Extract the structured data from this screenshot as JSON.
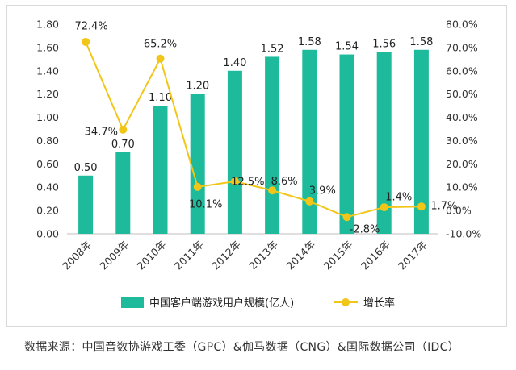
{
  "chart_data": {
    "type": "bar+line",
    "categories": [
      "2008年",
      "2009年",
      "2010年",
      "2011年",
      "2012年",
      "2013年",
      "2014年",
      "2015年",
      "2016年",
      "2017年"
    ],
    "series": [
      {
        "name": "中国客户端游戏用户规模(亿人)",
        "kind": "bar",
        "axis": "left",
        "color": "#1dbb9b",
        "values": [
          0.5,
          0.7,
          1.1,
          1.2,
          1.4,
          1.52,
          1.58,
          1.54,
          1.56,
          1.58
        ],
        "labels": [
          "0.50",
          "0.70",
          "1.10",
          "1.20",
          "1.40",
          "1.52",
          "1.58",
          "1.54",
          "1.56",
          "1.58"
        ]
      },
      {
        "name": "增长率",
        "kind": "line",
        "axis": "right",
        "color": "#f2c619",
        "values": [
          72.4,
          34.7,
          65.2,
          10.1,
          12.5,
          8.6,
          3.9,
          -2.8,
          1.4,
          1.7
        ],
        "labels": [
          "72.4%",
          "34.7%",
          "65.2%",
          "10.1%",
          "12.5%",
          "8.6%",
          "3.9%",
          "-2.8%",
          "1.4%",
          "1.7%"
        ]
      }
    ],
    "y_left": {
      "min": 0,
      "max": 1.8,
      "step": 0.2,
      "ticks": [
        "0.00",
        "0.20",
        "0.40",
        "0.60",
        "0.80",
        "1.00",
        "1.20",
        "1.40",
        "1.60",
        "1.80"
      ]
    },
    "y_right": {
      "min": -10,
      "max": 80,
      "step": 10,
      "ticks": [
        "-10.0%",
        "0.0%",
        "10.0%",
        "20.0%",
        "30.0%",
        "40.0%",
        "50.0%",
        "60.0%",
        "70.0%",
        "80.0%"
      ]
    },
    "legend": [
      "中国客户端游戏用户规模(亿人)",
      "增长率"
    ],
    "legend_position": "bottom",
    "grid": false
  },
  "source_note": "数据来源：中国音数协游戏工委（GPC）&伽马数据（CNG）&国际数据公司（IDC）"
}
